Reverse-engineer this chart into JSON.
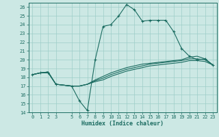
{
  "title": "",
  "xlabel": "Humidex (Indice chaleur)",
  "xlim": [
    -0.5,
    23.5
  ],
  "ylim": [
    14,
    26.5
  ],
  "yticks": [
    14,
    15,
    16,
    17,
    18,
    19,
    20,
    21,
    22,
    23,
    24,
    25,
    26
  ],
  "xticks": [
    0,
    1,
    2,
    3,
    5,
    6,
    7,
    8,
    9,
    10,
    11,
    12,
    13,
    14,
    15,
    16,
    17,
    18,
    19,
    20,
    21,
    22,
    23
  ],
  "background_color": "#cce8e4",
  "grid_color": "#9ecdc8",
  "line_color": "#1a6b60",
  "lines": [
    {
      "x": [
        0,
        1,
        2,
        3,
        5,
        6,
        7,
        8,
        9,
        10,
        11,
        12,
        13,
        14,
        15,
        16,
        17,
        18,
        19,
        20,
        21,
        22,
        23
      ],
      "y": [
        18.3,
        18.5,
        18.5,
        17.2,
        17.0,
        15.3,
        14.2,
        20.0,
        23.8,
        24.0,
        25.0,
        26.3,
        25.7,
        24.4,
        24.5,
        24.5,
        24.5,
        23.2,
        21.3,
        20.4,
        20.0,
        20.1,
        19.4
      ],
      "marker": "+"
    },
    {
      "x": [
        0,
        1,
        2,
        3,
        5,
        6,
        7,
        8,
        9,
        10,
        11,
        12,
        13,
        14,
        15,
        16,
        17,
        18,
        19,
        20,
        21,
        22,
        23
      ],
      "y": [
        18.3,
        18.5,
        18.6,
        17.2,
        17.0,
        17.0,
        17.2,
        17.7,
        18.1,
        18.5,
        18.8,
        19.1,
        19.3,
        19.5,
        19.6,
        19.7,
        19.8,
        19.9,
        20.0,
        20.3,
        20.4,
        20.1,
        19.4
      ],
      "marker": null
    },
    {
      "x": [
        0,
        1,
        2,
        3,
        5,
        6,
        7,
        8,
        9,
        10,
        11,
        12,
        13,
        14,
        15,
        16,
        17,
        18,
        19,
        20,
        21,
        22,
        23
      ],
      "y": [
        18.3,
        18.5,
        18.6,
        17.2,
        17.0,
        17.0,
        17.2,
        17.6,
        17.9,
        18.3,
        18.6,
        18.9,
        19.1,
        19.3,
        19.5,
        19.6,
        19.7,
        19.8,
        19.9,
        20.1,
        20.1,
        20.0,
        19.4
      ],
      "marker": null
    },
    {
      "x": [
        0,
        1,
        2,
        3,
        5,
        6,
        7,
        8,
        9,
        10,
        11,
        12,
        13,
        14,
        15,
        16,
        17,
        18,
        19,
        20,
        21,
        22,
        23
      ],
      "y": [
        18.3,
        18.5,
        18.6,
        17.2,
        17.0,
        17.0,
        17.2,
        17.5,
        17.7,
        18.1,
        18.4,
        18.7,
        18.9,
        19.1,
        19.3,
        19.4,
        19.5,
        19.6,
        19.7,
        19.9,
        19.9,
        19.8,
        19.4
      ],
      "marker": null
    }
  ]
}
